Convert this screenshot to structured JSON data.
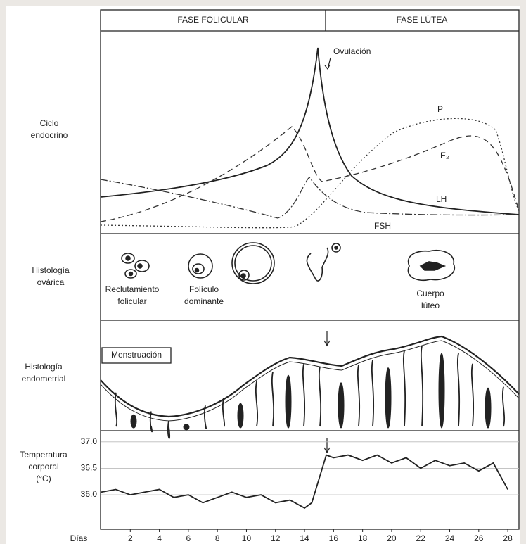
{
  "phases": [
    "FASE FOLICULAR",
    "FASE LÚTEA"
  ],
  "rows": [
    [
      "Ciclo",
      "endocrino"
    ],
    [
      "Histología",
      "ovárica"
    ],
    [
      "Histología",
      "endometrial"
    ],
    [
      "Temperatura",
      "corporal",
      "(°C)"
    ]
  ],
  "hormones": {
    "ovulation": "Ovulación",
    "labels": [
      "P",
      "E₂",
      "LH",
      "FSH"
    ]
  },
  "ovary_labels": [
    [
      "Reclutamiento",
      "folicular"
    ],
    [
      "Folículo",
      "dominante"
    ],
    [
      "Cuerpo",
      "lúteo"
    ]
  ],
  "menstruation": "Menstruación",
  "temperature": {
    "x": [
      0,
      1,
      2,
      3,
      4,
      5,
      6,
      7,
      8,
      9,
      10,
      11,
      12,
      13,
      14,
      14.5,
      15,
      15.5,
      16,
      17,
      18,
      19,
      20,
      21,
      22,
      23,
      24,
      25,
      26,
      27,
      27.5,
      28
    ],
    "values": [
      36.05,
      36.1,
      36.0,
      36.05,
      36.1,
      35.95,
      36.0,
      35.85,
      35.95,
      36.05,
      35.95,
      36.0,
      35.85,
      35.9,
      35.75,
      35.85,
      36.3,
      36.75,
      36.7,
      36.75,
      36.65,
      36.75,
      36.6,
      36.7,
      36.5,
      36.65,
      36.55,
      36.6,
      36.45,
      36.6,
      36.35,
      36.1
    ],
    "xlim": [
      0,
      28.77
    ],
    "ylim": [
      35.35,
      37.21
    ],
    "yticks": [
      {
        "value": 37.0,
        "label": "37.0"
      },
      36.5,
      {
        "value": 36.0,
        "label": "36.0"
      }
    ],
    "x_label": "Días",
    "xticks": [
      2,
      4,
      6,
      8,
      10,
      12,
      14,
      16,
      18,
      20,
      22,
      24,
      26,
      28
    ],
    "color": "#222222"
  }
}
